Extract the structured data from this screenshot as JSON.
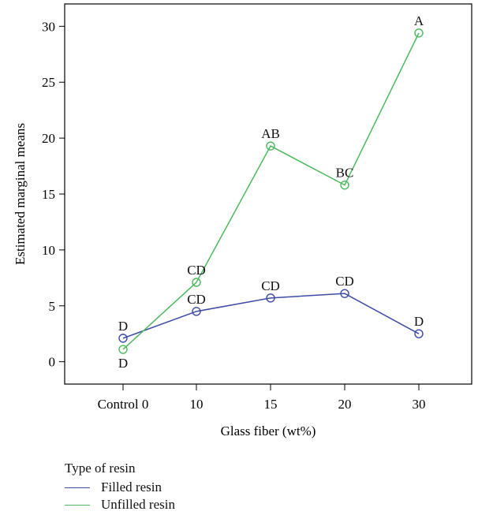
{
  "chart_data": {
    "type": "line",
    "title": "",
    "xlabel": "Glass fiber (wt%)",
    "ylabel": "Estimated marginal means",
    "categories": [
      "Control 0",
      "10",
      "15",
      "20",
      "30"
    ],
    "ylim": [
      -2,
      32
    ],
    "yticks": [
      0,
      5,
      10,
      15,
      20,
      25,
      30
    ],
    "grid": false,
    "legend": {
      "title": "Type of resin",
      "placement": "bottom-left"
    },
    "series": [
      {
        "name": "Filled resin",
        "color": "#3d4aa6",
        "values": [
          2.1,
          4.5,
          5.7,
          6.1,
          2.5
        ],
        "labels": [
          "D",
          "CD",
          "CD",
          "CD",
          "D"
        ],
        "label_position": [
          "above",
          "above",
          "above",
          "above",
          "above"
        ]
      },
      {
        "name": "Unfilled resin",
        "color": "#4db85e",
        "values": [
          1.1,
          7.1,
          19.3,
          15.8,
          29.4
        ],
        "labels": [
          "D",
          "CD",
          "AB",
          "BC",
          "A"
        ],
        "label_position": [
          "below",
          "above",
          "above",
          "above",
          "above"
        ]
      }
    ]
  }
}
